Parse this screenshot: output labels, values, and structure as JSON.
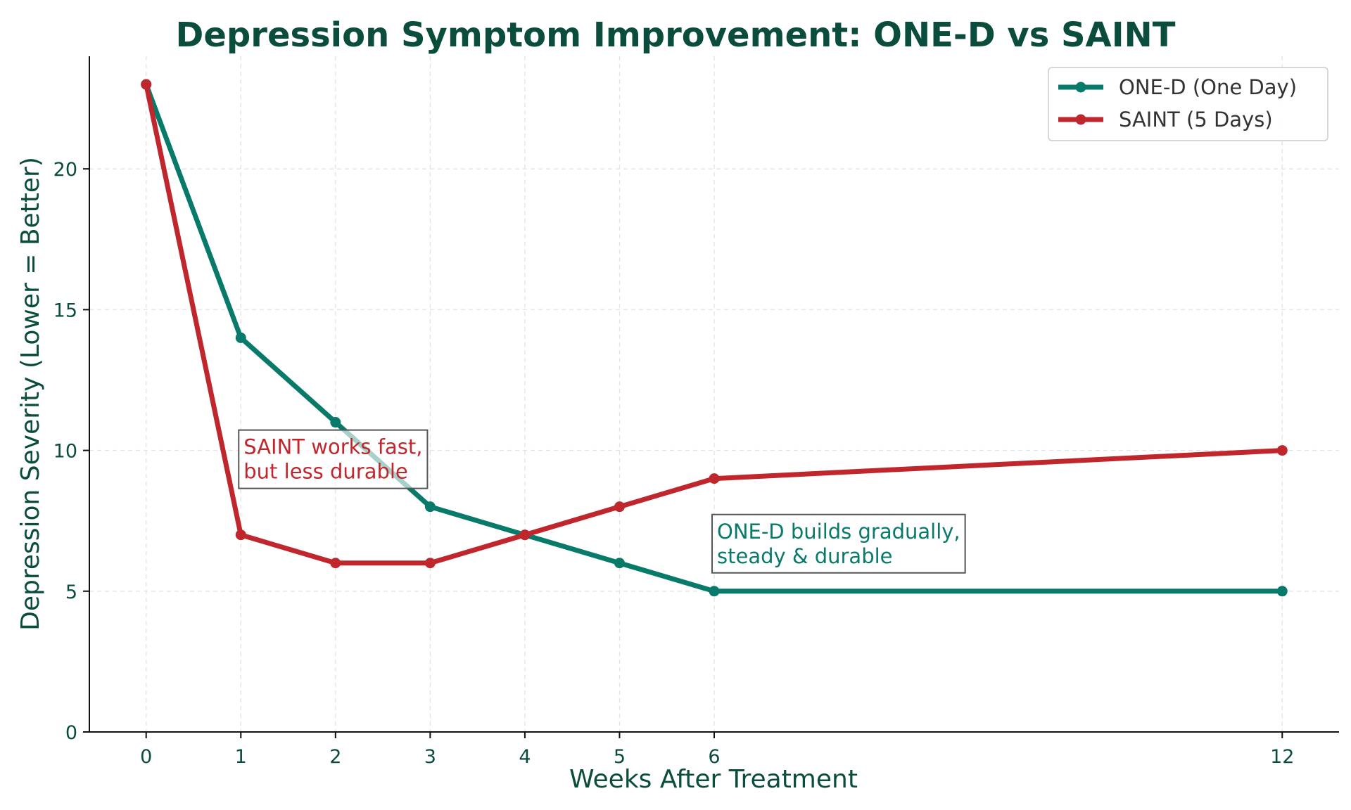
{
  "chart_data": {
    "type": "line",
    "title": "Depression Symptom Improvement: ONE-D vs SAINT",
    "xlabel": "Weeks After Treatment",
    "ylabel": "Depression Severity (Lower = Better)",
    "x": [
      0,
      1,
      2,
      3,
      4,
      5,
      6,
      12
    ],
    "xticks": [
      0,
      1,
      2,
      3,
      4,
      5,
      6,
      12
    ],
    "yticks": [
      0,
      5,
      10,
      15,
      20
    ],
    "xlim": [
      -0.6,
      12.6
    ],
    "ylim": [
      0,
      24
    ],
    "grid": true,
    "legend_position": "top-right",
    "series": [
      {
        "name": "ONE-D (One Day)",
        "color": "#087a6a",
        "values": [
          23,
          14,
          11,
          8,
          7,
          6,
          5,
          5
        ]
      },
      {
        "name": "SAINT (5 Days)",
        "color": "#c0272d",
        "values": [
          23,
          7,
          6,
          6,
          7,
          8,
          9,
          10
        ]
      }
    ],
    "annotations": [
      {
        "lines": [
          "SAINT works fast,",
          "but less durable"
        ],
        "x": 1,
        "y": 9.0,
        "color": "#c0272d"
      },
      {
        "lines": [
          "ONE-D builds gradually,",
          "steady & durable"
        ],
        "x": 6,
        "y": 6.0,
        "color": "#087a6a"
      }
    ]
  }
}
